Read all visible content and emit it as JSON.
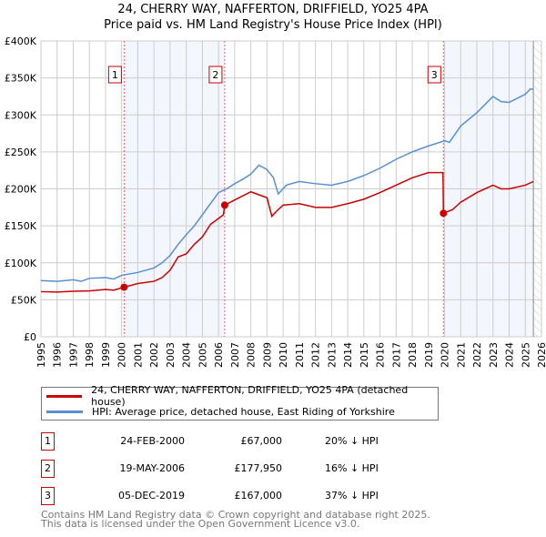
{
  "chart_data": {
    "type": "line",
    "title": "24, CHERRY WAY, NAFFERTON, DRIFFIELD, YO25 4PA",
    "subtitle": "Price paid vs. HM Land Registry's House Price Index (HPI)",
    "xlim": [
      1995,
      2026
    ],
    "ylim": [
      0,
      400000
    ],
    "x_ticks": [
      "1995",
      "1996",
      "1997",
      "1998",
      "1999",
      "2000",
      "2001",
      "2002",
      "2003",
      "2004",
      "2005",
      "2006",
      "2007",
      "2008",
      "2009",
      "2010",
      "2011",
      "2012",
      "2013",
      "2014",
      "2015",
      "2016",
      "2017",
      "2018",
      "2019",
      "2020",
      "2021",
      "2022",
      "2023",
      "2024",
      "2025",
      "2026"
    ],
    "y_ticks": [
      {
        "v": 0,
        "label": "£0"
      },
      {
        "v": 50000,
        "label": "£50K"
      },
      {
        "v": 100000,
        "label": "£100K"
      },
      {
        "v": 150000,
        "label": "£150K"
      },
      {
        "v": 200000,
        "label": "£200K"
      },
      {
        "v": 250000,
        "label": "£250K"
      },
      {
        "v": 300000,
        "label": "£300K"
      },
      {
        "v": 350000,
        "label": "£350K"
      },
      {
        "v": 400000,
        "label": "£400K"
      }
    ],
    "grid": true,
    "legend_placement": "below",
    "series": [
      {
        "name": "24, CHERRY WAY, NAFFERTON, DRIFFIELD, YO25 4PA (detached house)",
        "color": "#cc0000",
        "x": [
          1995,
          1996,
          1997,
          1998,
          1999,
          1999.5,
          2000.15,
          2001,
          2002,
          2002.5,
          2003,
          2003.5,
          2004,
          2004.5,
          2005,
          2005.5,
          2006,
          2006.3,
          2006.38,
          2007,
          2008,
          2009,
          2009.3,
          2009.6,
          2010,
          2011,
          2012,
          2013,
          2014,
          2015,
          2016,
          2017,
          2018,
          2019,
          2019.9,
          2019.93,
          2020.5,
          2021,
          2022,
          2023,
          2023.5,
          2024,
          2025,
          2025.5
        ],
        "y": [
          61000,
          60500,
          61500,
          62000,
          64000,
          63000,
          67000,
          72000,
          75000,
          80000,
          90000,
          108000,
          112000,
          125000,
          135000,
          152000,
          160000,
          165000,
          177950,
          185000,
          196000,
          188000,
          163000,
          170000,
          178000,
          180000,
          175000,
          175000,
          180000,
          186000,
          195000,
          205000,
          215000,
          222000,
          222000,
          167000,
          172000,
          182000,
          195000,
          205000,
          200000,
          200000,
          205000,
          210000
        ]
      },
      {
        "name": "HPI: Average price, detached house, East Riding of Yorkshire",
        "color": "#5b8fd4",
        "x": [
          1995,
          1996,
          1997,
          1997.5,
          1998,
          1999,
          1999.5,
          2000,
          2001,
          2002,
          2002.5,
          2003,
          2003.5,
          2004,
          2004.5,
          2005,
          2005.5,
          2006,
          2006.5,
          2007,
          2007.5,
          2008,
          2008.5,
          2009,
          2009.4,
          2009.7,
          2010.2,
          2011,
          2012,
          2013,
          2014,
          2015,
          2016,
          2017,
          2018,
          2019,
          2020,
          2020.3,
          2021,
          2022,
          2023,
          2023.5,
          2024,
          2025,
          2025.3,
          2025.5
        ],
        "y": [
          76000,
          75000,
          77000,
          75000,
          79000,
          80000,
          78000,
          83000,
          87000,
          93000,
          100000,
          110000,
          125000,
          138000,
          150000,
          165000,
          180000,
          195000,
          200000,
          207000,
          213000,
          220000,
          232000,
          226000,
          215000,
          193000,
          205000,
          210000,
          207000,
          205000,
          210000,
          218000,
          228000,
          240000,
          250000,
          258000,
          265000,
          263000,
          285000,
          303000,
          325000,
          318000,
          317000,
          328000,
          335000,
          335000
        ]
      }
    ],
    "sales": [
      {
        "label": "1",
        "x": 2000.15,
        "y": 67000,
        "date": "24-FEB-2000",
        "price": "£67,000",
        "hpi": "20% ↓ HPI"
      },
      {
        "label": "2",
        "x": 2006.38,
        "y": 177950,
        "date": "19-MAY-2006",
        "price": "£177,950",
        "hpi": "16% ↓ HPI"
      },
      {
        "label": "3",
        "x": 2019.93,
        "y": 167000,
        "date": "05-DEC-2019",
        "price": "£167,000",
        "hpi": "37% ↓ HPI"
      }
    ],
    "forecast_start": 2025.5
  },
  "footer": {
    "line1": "Contains HM Land Registry data © Crown copyright and database right 2025.",
    "line2": "This data is licensed under the Open Government Licence v3.0."
  }
}
